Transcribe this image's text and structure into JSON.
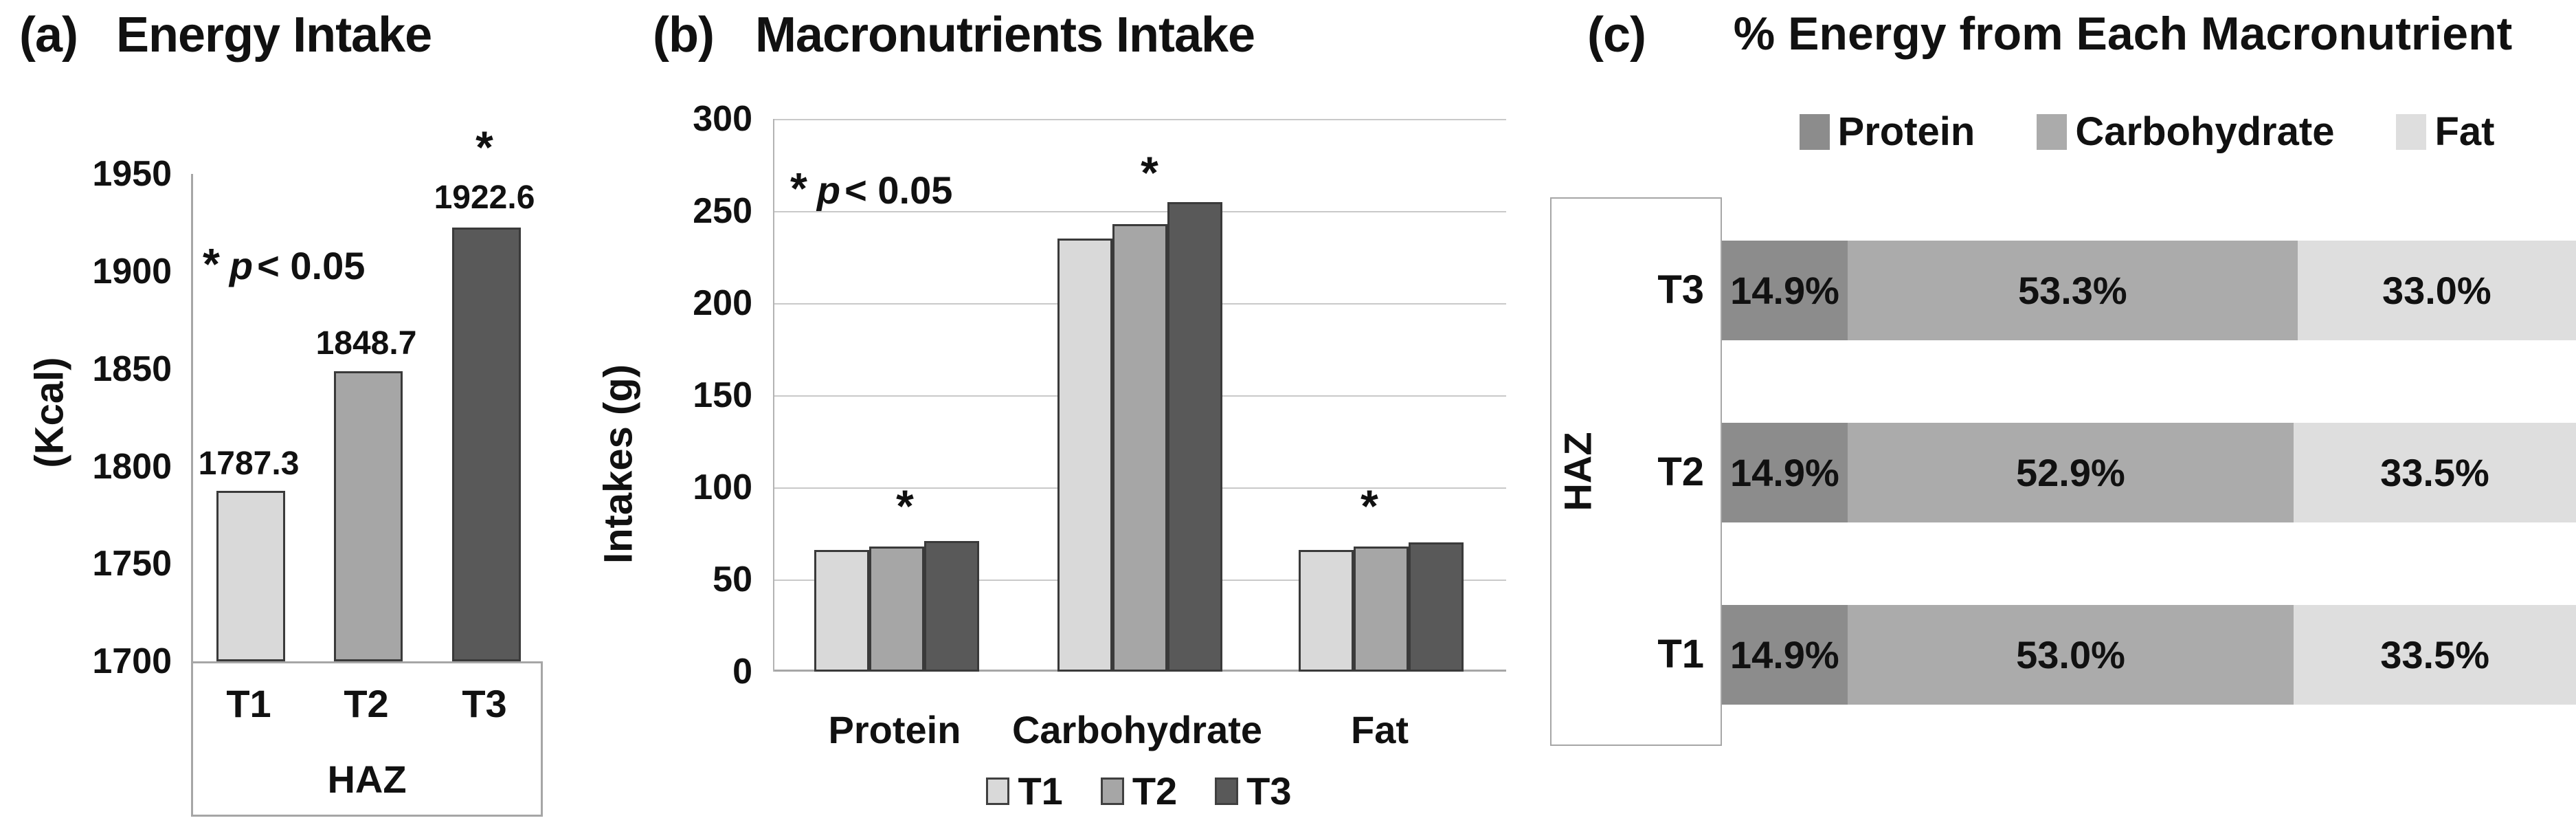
{
  "chart_data": [
    {
      "type": "bar",
      "panel_label": "(a)",
      "title": "Energy Intake",
      "significance_note": {
        "symbol": "*",
        "variable": "p",
        "comparison": "< 0.05"
      },
      "ylabel": "(Kcal)",
      "xlabel": "HAZ",
      "ylim": [
        1700,
        1950
      ],
      "yticks": [
        1950,
        1900,
        1850,
        1800,
        1750,
        1700
      ],
      "categories": [
        "T1",
        "T2",
        "T3"
      ],
      "values": [
        1787.3,
        1848.7,
        1922.6
      ],
      "bar_labels": [
        "1787.3",
        "1848.7",
        "1922.6"
      ],
      "bar_asterisks": [
        "",
        "",
        "*"
      ],
      "bar_colors": [
        "#d9d9d9",
        "#a6a6a6",
        "#595959"
      ],
      "grid": false
    },
    {
      "type": "bar",
      "panel_label": "(b)",
      "title": "Macronutrients Intake",
      "significance_note": {
        "symbol": "*",
        "variable": "p",
        "comparison": "< 0.05"
      },
      "ylabel": "Intakes (g)",
      "ylim": [
        0,
        300
      ],
      "yticks": [
        300,
        250,
        200,
        150,
        100,
        50,
        0
      ],
      "categories": [
        "Protein",
        "Carbohydrate",
        "Fat"
      ],
      "series": [
        {
          "name": "T1",
          "color": "#d9d9d9",
          "values": [
            66,
            235,
            66
          ]
        },
        {
          "name": "T2",
          "color": "#a6a6a6",
          "values": [
            68,
            243,
            68
          ]
        },
        {
          "name": "T3",
          "color": "#595959",
          "values": [
            71,
            255,
            70
          ]
        }
      ],
      "group_asterisks": [
        "*",
        "*",
        "*"
      ],
      "legend": [
        "T1",
        "T2",
        "T3"
      ],
      "legend_position": "bottom",
      "grid": true
    },
    {
      "type": "stacked-bar-horizontal",
      "panel_label": "(c)",
      "title": "% Energy from Each Macronutrient",
      "group_label": "HAZ",
      "categories": [
        "T3",
        "T2",
        "T1"
      ],
      "series": [
        {
          "name": "Protein",
          "color": "#8c8c8c",
          "values": [
            14.9,
            14.9,
            14.9
          ]
        },
        {
          "name": "Carbohydrate",
          "color": "#ababab",
          "values": [
            53.3,
            52.9,
            53.0
          ]
        },
        {
          "name": "Fat",
          "color": "#dedede",
          "values": [
            33.0,
            33.5,
            33.5
          ]
        }
      ],
      "segment_labels": [
        [
          "14.9%",
          "53.3%",
          "33.0%"
        ],
        [
          "14.9%",
          "52.9%",
          "33.5%"
        ],
        [
          "14.9%",
          "53.0%",
          "33.5%"
        ]
      ],
      "legend": [
        "Protein",
        "Carbohydrate",
        "Fat"
      ],
      "legend_position": "top",
      "xlim": [
        0,
        100
      ],
      "unit": "percent"
    }
  ]
}
